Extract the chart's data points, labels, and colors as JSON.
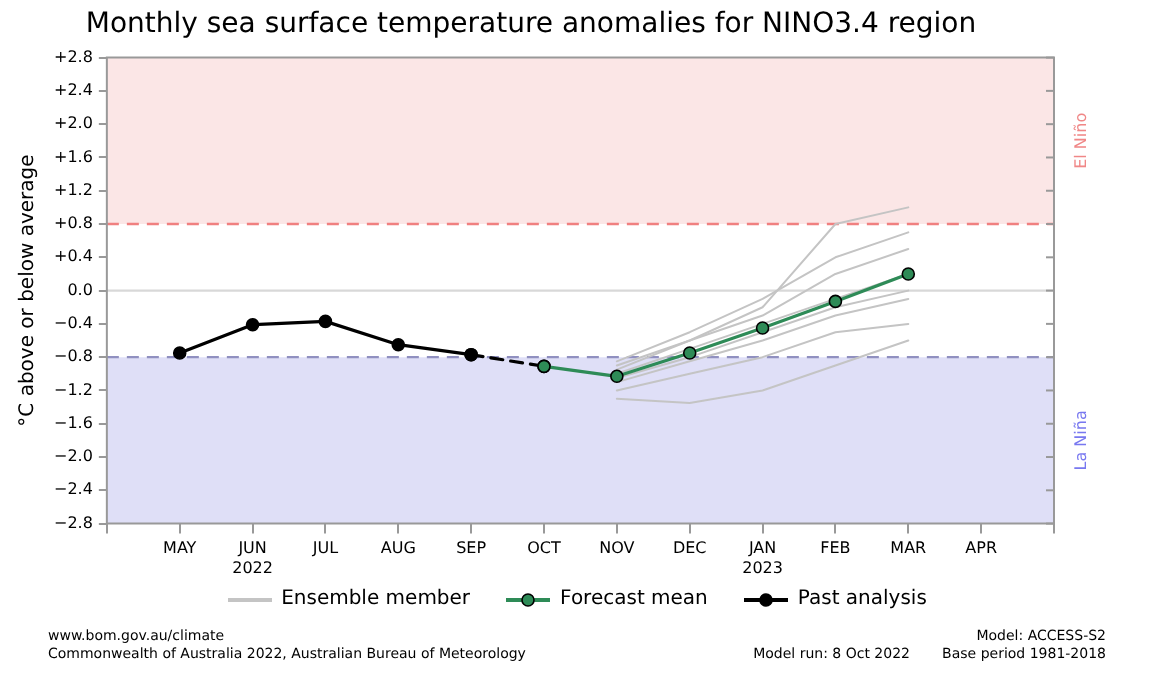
{
  "chart_data": {
    "type": "line",
    "title": "Monthly sea surface temperature anomalies for NINO3.4 region",
    "ylabel": "°C above or below average",
    "categories": [
      null,
      "MAY",
      "JUN\n2022",
      "JUL",
      "AUG",
      "SEP",
      "OCT",
      "NOV",
      "DEC",
      "JAN\n2023",
      "FEB",
      "MAR",
      "APR",
      null
    ],
    "series": [
      {
        "name": "Ensemble member",
        "color": "#c4c4c4",
        "marker": "none",
        "values": [
          null,
          null,
          null,
          null,
          null,
          null,
          null,
          -0.85,
          -0.5,
          -0.1,
          0.4,
          0.7,
          null,
          null
        ]
      },
      {
        "color": "#c4c4c4",
        "marker": "none",
        "values": [
          null,
          null,
          null,
          null,
          null,
          null,
          null,
          -0.9,
          -0.6,
          -0.3,
          0.2,
          0.5,
          null,
          null
        ]
      },
      {
        "color": "#c4c4c4",
        "marker": "none",
        "values": [
          null,
          null,
          null,
          null,
          null,
          null,
          null,
          -1.0,
          -0.7,
          -0.4,
          -0.1,
          0.2,
          null,
          null
        ]
      },
      {
        "color": "#c4c4c4",
        "marker": "none",
        "values": [
          null,
          null,
          null,
          null,
          null,
          null,
          null,
          -1.1,
          -0.85,
          -0.6,
          -0.3,
          -0.1,
          null,
          null
        ]
      },
      {
        "color": "#c4c4c4",
        "marker": "none",
        "values": [
          null,
          null,
          null,
          null,
          null,
          null,
          null,
          -1.2,
          -1.0,
          -0.8,
          -0.5,
          -0.4,
          null,
          null
        ]
      },
      {
        "color": "#c4c4c4",
        "marker": "none",
        "values": [
          null,
          null,
          null,
          null,
          null,
          null,
          null,
          -1.3,
          -1.35,
          -1.2,
          -0.9,
          -0.6,
          null,
          null
        ]
      },
      {
        "color": "#c4c4c4",
        "marker": "none",
        "values": [
          null,
          null,
          null,
          null,
          null,
          null,
          null,
          -0.95,
          -0.6,
          -0.2,
          0.8,
          1.0,
          null,
          null
        ]
      },
      {
        "color": "#c4c4c4",
        "marker": "none",
        "values": [
          null,
          null,
          null,
          null,
          null,
          null,
          null,
          -1.05,
          -0.8,
          -0.5,
          -0.2,
          0.0,
          null,
          null
        ]
      },
      {
        "color": "#000000",
        "marker": "circle",
        "line_style": "dashed",
        "values": [
          null,
          null,
          null,
          null,
          null,
          -0.77,
          -0.91,
          null,
          null,
          null,
          null,
          null,
          null,
          null
        ]
      },
      {
        "name": "Forecast mean",
        "color": "#2e8b57",
        "marker": "circle",
        "values": [
          null,
          null,
          null,
          null,
          null,
          null,
          -0.91,
          -1.03,
          -0.75,
          -0.45,
          -0.13,
          0.2,
          null,
          null
        ]
      },
      {
        "name": "Past analysis",
        "color": "#000000",
        "marker": "circle",
        "values": [
          null,
          -0.75,
          -0.41,
          -0.37,
          -0.65,
          -0.77,
          null,
          null,
          null,
          null,
          null,
          null,
          null,
          null
        ]
      }
    ],
    "ylim": [
      -2.8,
      2.8
    ],
    "yticks": [
      {
        "value": -2.8,
        "label": "−2.8"
      },
      {
        "value": -2.4,
        "label": "−2.4"
      },
      {
        "value": -2.0,
        "label": "−2.0"
      },
      {
        "value": -1.6,
        "label": "−1.6"
      },
      {
        "value": -1.2,
        "label": "−1.2"
      },
      {
        "value": -0.8,
        "label": "−0.8"
      },
      {
        "value": -0.4,
        "label": "−0.4"
      },
      {
        "value": 0,
        "label": "0.0"
      },
      {
        "value": 0.4,
        "label": "+0.4"
      },
      {
        "value": 0.8,
        "label": "+0.8"
      },
      {
        "value": 1.2,
        "label": "+1.2"
      },
      {
        "value": 1.6,
        "label": "+1.6"
      },
      {
        "value": 2.0,
        "label": "+2.0"
      },
      {
        "value": 2.4,
        "label": "+2.4"
      },
      {
        "value": 2.8,
        "label": "+2.8"
      }
    ],
    "bands": [
      {
        "axis": "y",
        "from": 0.8,
        "to": 2.8,
        "label": "El Niño",
        "color": "#fbe6e6"
      },
      {
        "axis": "y",
        "from": -2.8,
        "to": -0.8,
        "label": "La Niña",
        "color": "#dfdff7"
      }
    ],
    "ref_lines": [
      {
        "axis": "y",
        "value": 0.8,
        "color": "#f08080",
        "line_style": "dashed"
      },
      {
        "axis": "y",
        "value": -0.8,
        "color": "#9090c0",
        "line_style": "dashed"
      },
      {
        "axis": "y",
        "value": 0,
        "color": "#d8d8d8",
        "line_style": "solid"
      }
    ],
    "grid": false,
    "legend": "bottom",
    "annotations": [
      "www.bom.gov.au/climate",
      "Commonwealth of Australia 2022, Australian Bureau of Meteorology",
      "Model run: 8 Oct 2022",
      "Model: ACCESS-S2",
      "Base period 1981-2018"
    ]
  }
}
